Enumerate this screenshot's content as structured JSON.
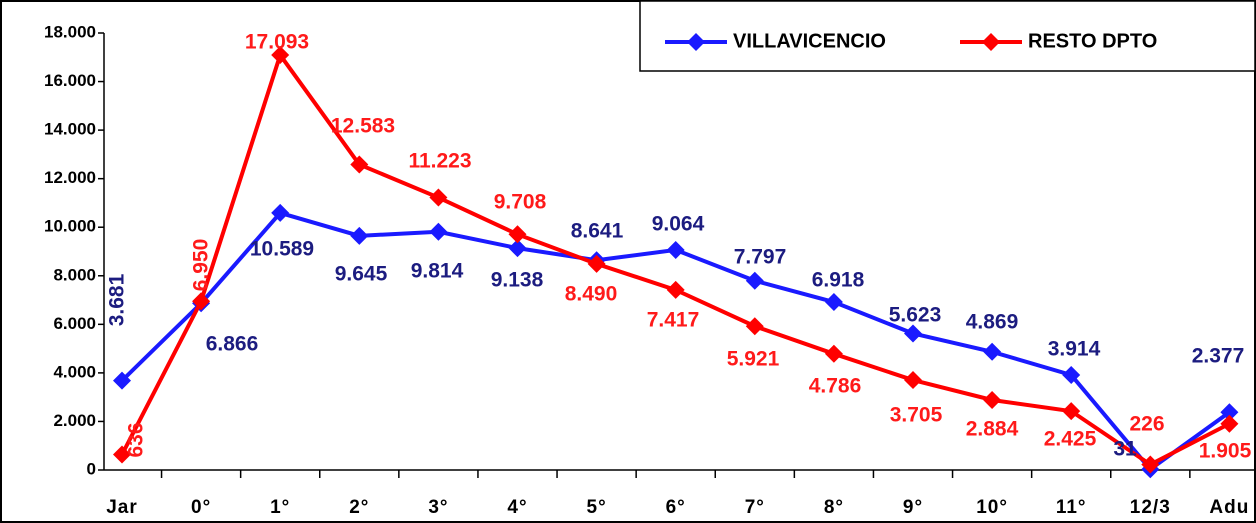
{
  "chart_data": {
    "type": "line",
    "categories": [
      "Jar",
      "0°",
      "1°",
      "2°",
      "3°",
      "4°",
      "5°",
      "6°",
      "7°",
      "8°",
      "9°",
      "10°",
      "11°",
      "12/3",
      "Adu"
    ],
    "series": [
      {
        "name": "VILLAVICENCIO",
        "color": "#1a1aff",
        "label_color": "#1c1c80",
        "values": [
          3681,
          6866,
          10589,
          9645,
          9814,
          9138,
          8641,
          9064,
          7797,
          6918,
          5623,
          4869,
          3914,
          31,
          2377
        ],
        "value_labels": [
          "3.681",
          "6.866",
          "10.589",
          "9.645",
          "9.814",
          "9.138",
          "8.641",
          "9.064",
          "7.797",
          "6.918",
          "5.623",
          "4.869",
          "3.914",
          "31",
          "2.377"
        ]
      },
      {
        "name": "RESTO DPTO",
        "color": "#ff0000",
        "label_color": "#ff1a1a",
        "values": [
          636,
          6950,
          17093,
          12583,
          11223,
          9708,
          8490,
          7417,
          5921,
          4786,
          3705,
          2884,
          2425,
          226,
          1905
        ],
        "value_labels": [
          "636",
          "6.950",
          "17.093",
          "12.583",
          "11.223",
          "9.708",
          "8.490",
          "7.417",
          "5.921",
          "4.786",
          "3.705",
          "2.884",
          "2.425",
          "226",
          "1.905"
        ]
      }
    ],
    "ylim": [
      0,
      18000
    ],
    "yticks": [
      0,
      {
        "value": 2000,
        "label": "2.000"
      },
      {
        "value": 4000,
        "label": "4.000"
      },
      {
        "value": 6000,
        "label": "6.000"
      },
      {
        "value": 8000,
        "label": "8.000"
      },
      {
        "value": 10000,
        "label": "10.000"
      },
      {
        "value": 12000,
        "label": "12.000"
      },
      {
        "value": 14000,
        "label": "14.000"
      },
      {
        "value": 16000,
        "label": "16.000"
      },
      {
        "value": 18000,
        "label": "18.000"
      }
    ],
    "legend": "top-right",
    "grid": false
  }
}
